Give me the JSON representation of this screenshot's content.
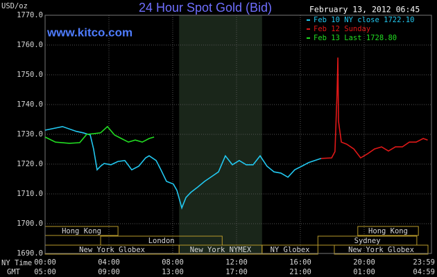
{
  "chart_data": {
    "type": "line",
    "title": "24 Hour Spot Gold (Bid)",
    "website": "www.kitco.com",
    "timestamp": "February 13, 2012 06:45",
    "y_label": "USD/oz",
    "x_label": "NY Time",
    "x2_label": "GMT",
    "xlim": [
      0,
      24
    ],
    "xticks": [
      {
        "value": 0,
        "label": "00:00"
      },
      {
        "value": 4,
        "label": "04:00"
      },
      {
        "value": 8,
        "label": "08:00"
      },
      {
        "value": 12,
        "label": "12:00"
      },
      {
        "value": 16,
        "label": "16:00"
      },
      {
        "value": 20,
        "label": "20:00"
      },
      {
        "value": 23.98,
        "label": "23:59"
      }
    ],
    "x2ticks": [
      {
        "value": 0,
        "label": "05:00"
      },
      {
        "value": 4,
        "label": "09:00"
      },
      {
        "value": 8,
        "label": "13:00"
      },
      {
        "value": 12,
        "label": "17:00"
      },
      {
        "value": 16,
        "label": "21:00"
      },
      {
        "value": 20,
        "label": "01:00"
      },
      {
        "value": 23.98,
        "label": "04:59"
      }
    ],
    "ylim": [
      1690,
      1770
    ],
    "yticks": [
      {
        "value": 1690,
        "label": "1690.0"
      },
      {
        "value": 1700,
        "label": "1700.0"
      },
      {
        "value": 1710,
        "label": "1710.0"
      },
      {
        "value": 1720,
        "label": "1720.0"
      },
      {
        "value": 1730,
        "label": "1730.0"
      },
      {
        "value": 1740,
        "label": "1740.0"
      },
      {
        "value": 1750,
        "label": "1750.0"
      },
      {
        "value": 1760,
        "label": "1760.0"
      },
      {
        "value": 1770,
        "label": "1770.0"
      }
    ],
    "grid": true,
    "shaded_period": {
      "start": 8.4,
      "end": 13.6,
      "color": "#1a261a"
    },
    "series": [
      {
        "name": "Feb 10 NY close 1722.10",
        "color": "#22c8f0",
        "x": [
          0,
          1.09,
          1.96,
          2.39,
          2.83,
          3.04,
          3.26,
          3.48,
          3.7,
          4.13,
          4.57,
          5.0,
          5.43,
          5.87,
          6.3,
          6.52,
          6.96,
          7.26,
          7.61,
          8.04,
          8.26,
          8.57,
          8.83,
          9.13,
          9.57,
          10.0,
          10.43,
          10.87,
          11.3,
          11.74,
          12.17,
          12.61,
          13.04,
          13.48,
          13.91,
          14.35,
          14.78,
          15.22,
          15.65,
          16.09,
          16.52,
          17.3
        ],
        "values": [
          1731.4,
          1732.6,
          1731.0,
          1730.5,
          1729.8,
          1725.1,
          1718.1,
          1719.3,
          1720.2,
          1719.8,
          1720.9,
          1721.2,
          1718.1,
          1719.3,
          1722.1,
          1722.8,
          1721.2,
          1718.1,
          1714.2,
          1713.3,
          1711.2,
          1705.3,
          1708.8,
          1710.5,
          1712.3,
          1714.2,
          1715.8,
          1717.4,
          1722.8,
          1719.8,
          1721.2,
          1719.8,
          1719.8,
          1722.8,
          1719.3,
          1717.4,
          1717.0,
          1715.6,
          1718.1,
          1719.3,
          1720.5,
          1721.9
        ]
      },
      {
        "name": "Feb 12 Sunday",
        "color": "#e01818",
        "x": [
          17.3,
          17.96,
          18.17,
          18.3,
          18.35,
          18.39,
          18.57,
          18.91,
          19.35,
          19.78,
          20.22,
          20.65,
          21.09,
          21.52,
          21.96,
          22.39,
          22.83,
          23.26,
          23.7,
          23.98
        ],
        "values": [
          1721.9,
          1722.1,
          1724.2,
          1743.7,
          1755.8,
          1734.4,
          1727.4,
          1726.7,
          1725.1,
          1722.1,
          1723.5,
          1725.1,
          1725.8,
          1724.4,
          1725.8,
          1725.8,
          1727.4,
          1727.4,
          1728.6,
          1728.1
        ]
      },
      {
        "name": "Feb 13 Last 1728.80",
        "color": "#22dd22",
        "x": [
          0,
          0.65,
          1.52,
          2.17,
          2.61,
          3.04,
          3.48,
          3.91,
          4.35,
          4.78,
          5.22,
          5.65,
          6.09,
          6.52,
          6.83
        ],
        "values": [
          1729.1,
          1727.4,
          1727.0,
          1727.2,
          1730.0,
          1730.2,
          1730.5,
          1732.6,
          1729.8,
          1728.6,
          1727.4,
          1728.1,
          1727.4,
          1728.6,
          1729.1
        ]
      }
    ],
    "sessions": [
      [
        {
          "label": "Hong Kong",
          "start": 0,
          "end": 4.57
        },
        {
          "label": "Hong Kong",
          "start": 19.6,
          "end": 23.4
        }
      ],
      [
        {
          "label": "London",
          "start": 3.48,
          "end": 11.1
        },
        {
          "label": "Sydney",
          "start": 17.1,
          "end": 23.3
        }
      ],
      [
        {
          "label": "New York Globex",
          "start": 0,
          "end": 8.4
        },
        {
          "label": "New York NYMEX",
          "start": 8.4,
          "end": 13.6
        },
        {
          "label": "NY Globex",
          "start": 13.6,
          "end": 17.1
        },
        {
          "label": "New York Globex",
          "start": 18.13,
          "end": 24
        }
      ]
    ]
  }
}
